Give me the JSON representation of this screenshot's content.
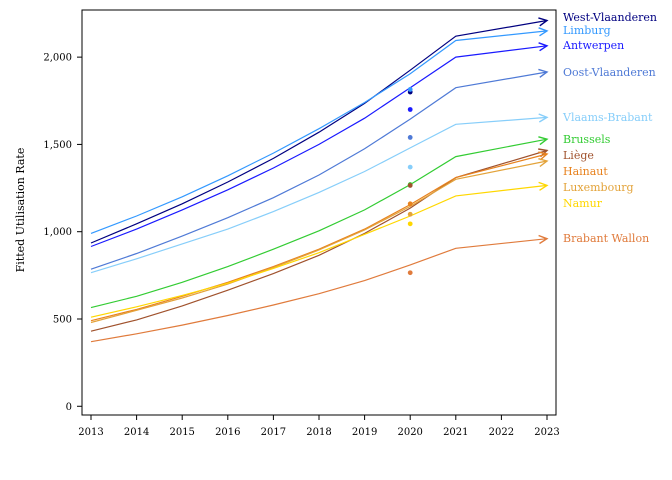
{
  "chart_data": {
    "type": "line",
    "ylabel": "Fitted Utilisation Rate",
    "xlabel": "",
    "title": "",
    "x": [
      2013,
      2014,
      2015,
      2016,
      2017,
      2018,
      2019,
      2020,
      2021,
      2023
    ],
    "xticks": [
      "2013",
      "2014",
      "2015",
      "2016",
      "2017",
      "2018",
      "2019",
      "2020",
      "2021",
      "2022",
      "2023"
    ],
    "xlim": [
      2013,
      2023
    ],
    "yticks": [
      0,
      500,
      1000,
      1500,
      2000
    ],
    "ytick_labels": [
      "0",
      "500",
      "1,000",
      "1,500",
      "2,000"
    ],
    "ylim": [
      -50,
      2270
    ],
    "grid": false,
    "legend": "right, labels at line ends",
    "marker_x": 2020,
    "series": [
      {
        "name": "West-Vlaanderen",
        "color": "#000080",
        "values": [
          935,
          1045,
          1160,
          1285,
          1420,
          1570,
          1735,
          1925,
          2120,
          2210
        ],
        "marker": 1800
      },
      {
        "name": "Limburg",
        "color": "#3399ff",
        "values": [
          990,
          1090,
          1200,
          1320,
          1450,
          1590,
          1740,
          1905,
          2095,
          2150
        ],
        "marker": 1815
      },
      {
        "name": "Antwerpen",
        "color": "#1a1aff",
        "values": [
          915,
          1015,
          1125,
          1240,
          1365,
          1500,
          1650,
          1825,
          2000,
          2065
        ],
        "marker": 1700
      },
      {
        "name": "Oost-Vlaanderen",
        "color": "#4f7ad6",
        "values": [
          785,
          875,
          975,
          1080,
          1195,
          1325,
          1475,
          1645,
          1825,
          1915
        ],
        "marker": 1540
      },
      {
        "name": "Vlaams-Brabant",
        "color": "#87cefa",
        "values": [
          765,
          845,
          930,
          1015,
          1115,
          1225,
          1345,
          1480,
          1615,
          1655
        ],
        "marker": 1370
      },
      {
        "name": "Brussels",
        "color": "#33cc33",
        "values": [
          565,
          630,
          710,
          800,
          900,
          1005,
          1125,
          1270,
          1430,
          1530
        ],
        "marker": 1270
      },
      {
        "name": "Liège",
        "color": "#a0522d",
        "values": [
          430,
          495,
          575,
          665,
          760,
          865,
          990,
          1135,
          1310,
          1465
        ],
        "marker": 1265
      },
      {
        "name": "Hainaut",
        "color": "#e8821e",
        "values": [
          490,
          555,
          630,
          710,
          800,
          900,
          1015,
          1155,
          1310,
          1445
        ],
        "marker": 1160
      },
      {
        "name": "Luxembourg",
        "color": "#e3a33a",
        "values": [
          480,
          550,
          620,
          700,
          795,
          895,
          1010,
          1145,
          1300,
          1405
        ],
        "marker": 1100
      },
      {
        "name": "Namur",
        "color": "#ffd700",
        "values": [
          510,
          570,
          635,
          705,
          790,
          880,
          985,
          1090,
          1205,
          1265
        ],
        "marker": 1045
      },
      {
        "name": "Brabant Wallon",
        "color": "#e07b3c",
        "values": [
          370,
          415,
          465,
          520,
          580,
          645,
          720,
          810,
          905,
          960
        ],
        "marker": 765
      }
    ]
  }
}
